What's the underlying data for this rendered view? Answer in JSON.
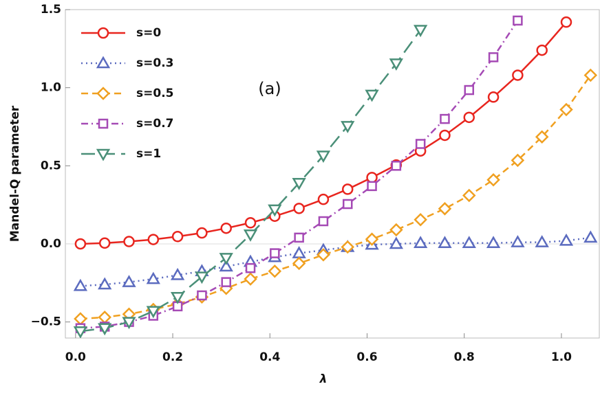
{
  "chart_data": {
    "type": "line",
    "x_label": "λ",
    "y_label": "Mandel-Q parameter",
    "annotation": "(a)",
    "x": [
      0.01,
      0.06,
      0.11,
      0.16,
      0.21,
      0.26,
      0.31,
      0.36,
      0.41,
      0.46,
      0.51,
      0.56,
      0.61,
      0.66,
      0.71,
      0.76,
      0.81,
      0.86,
      0.91,
      0.96,
      1.01,
      1.06
    ],
    "xlim": [
      -0.021,
      1.078
    ],
    "ylim": [
      -0.603,
      1.5
    ],
    "xticks": [
      {
        "value": 0,
        "label": "0.0"
      },
      0.2,
      0.4,
      0.6,
      0.8,
      {
        "value": 1,
        "label": "1.0"
      }
    ],
    "yticks": [
      {
        "value": -0.5,
        "label": "−0.5"
      },
      {
        "value": 0,
        "label": "0.0"
      },
      0.5,
      {
        "value": 1,
        "label": "1.0"
      },
      {
        "value": 1.5,
        "label": "1.5"
      }
    ],
    "legend_position": "upper left",
    "series": [
      {
        "name": "s=0",
        "color": "#e8251e",
        "marker": "circle",
        "dash": "solid",
        "values": [
          0.0,
          0.005,
          0.015,
          0.028,
          0.047,
          0.07,
          0.1,
          0.135,
          0.177,
          0.227,
          0.285,
          0.35,
          0.425,
          0.505,
          0.595,
          0.695,
          0.81,
          0.94,
          1.08,
          1.24,
          1.42,
          null
        ]
      },
      {
        "name": "s=0.3",
        "color": "#5b6bbf",
        "marker": "triangle",
        "dash": "dotted",
        "values": [
          -0.27,
          -0.26,
          -0.245,
          -0.225,
          -0.2,
          -0.175,
          -0.145,
          -0.115,
          -0.085,
          -0.06,
          -0.04,
          -0.02,
          -0.005,
          0.0,
          0.005,
          0.005,
          0.005,
          0.005,
          0.01,
          0.01,
          0.02,
          0.04
        ]
      },
      {
        "name": "s=0.5",
        "color": "#f0a020",
        "marker": "diamond",
        "dash": "dashed",
        "values": [
          -0.48,
          -0.47,
          -0.45,
          -0.42,
          -0.385,
          -0.34,
          -0.285,
          -0.225,
          -0.175,
          -0.125,
          -0.07,
          -0.02,
          0.03,
          0.09,
          0.155,
          0.225,
          0.31,
          0.41,
          0.535,
          0.685,
          0.86,
          1.08
        ]
      },
      {
        "name": "s=0.7",
        "color": "#a54ab5",
        "marker": "square",
        "dash": "dashdot",
        "values": [
          -0.54,
          -0.53,
          -0.5,
          -0.46,
          -0.4,
          -0.33,
          -0.245,
          -0.155,
          -0.06,
          0.04,
          0.145,
          0.255,
          0.37,
          0.5,
          0.64,
          0.8,
          0.985,
          1.195,
          1.43,
          null,
          null,
          null
        ]
      },
      {
        "name": "s=1",
        "color": "#4a8f78",
        "marker": "triangle-down",
        "dash": "longdash",
        "values": [
          -0.56,
          -0.54,
          -0.5,
          -0.43,
          -0.34,
          -0.21,
          -0.09,
          0.06,
          0.22,
          0.39,
          0.565,
          0.755,
          0.955,
          1.155,
          1.37,
          null,
          null,
          null,
          null,
          null,
          null,
          null
        ]
      }
    ]
  }
}
